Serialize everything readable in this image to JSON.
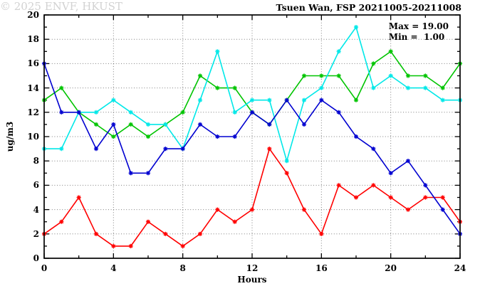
{
  "title": "Tsuen Wan, FSP 20211005-20211008",
  "watermark": "© 2025 ENVF, HKUST",
  "chart_data": {
    "type": "line",
    "title": "Tsuen Wan, FSP 20211005-20211008",
    "xlabel": "Hours",
    "ylabel": "ug/m3",
    "xlim": [
      0,
      24
    ],
    "ylim": [
      0,
      20
    ],
    "grid": true,
    "grid_style": "dotted",
    "xticks_major": [
      0,
      4,
      8,
      12,
      16,
      20,
      24
    ],
    "xticks_minor": [
      2,
      6,
      10,
      14,
      18,
      22
    ],
    "yticks_major": [
      0,
      2,
      4,
      6,
      8,
      10,
      12,
      14,
      16,
      18,
      20
    ],
    "yticks_minor": [
      1,
      3,
      5,
      7,
      9,
      11,
      13,
      15,
      17,
      19
    ],
    "annotations": [
      "Max = 19.00",
      "Min =  1.00"
    ],
    "x": [
      0,
      1,
      2,
      3,
      4,
      5,
      6,
      7,
      8,
      9,
      10,
      11,
      12,
      13,
      14,
      15,
      16,
      17,
      18,
      19,
      20,
      21,
      22,
      23,
      24
    ],
    "series": [
      {
        "name": "series-green",
        "color": "#00c400",
        "values": [
          13,
          14,
          12,
          11,
          10,
          11,
          10,
          11,
          12,
          15,
          14,
          14,
          12,
          11,
          13,
          15,
          15,
          15,
          13,
          16,
          17,
          15,
          15,
          14,
          16
        ]
      },
      {
        "name": "series-cyan",
        "color": "#00e8e8",
        "values": [
          9,
          9,
          12,
          12,
          13,
          12,
          11,
          11,
          9,
          13,
          17,
          12,
          13,
          13,
          8,
          13,
          14,
          17,
          19,
          14,
          15,
          14,
          14,
          13,
          13
        ]
      },
      {
        "name": "series-red",
        "color": "#ff0000",
        "values": [
          2,
          3,
          5,
          2,
          1,
          1,
          3,
          2,
          1,
          2,
          4,
          3,
          4,
          9,
          7,
          4,
          2,
          6,
          5,
          6,
          5,
          4,
          5,
          5,
          3
        ]
      },
      {
        "name": "series-blue",
        "color": "#0000d0",
        "values": [
          16,
          12,
          12,
          9,
          11,
          7,
          7,
          9,
          9,
          11,
          10,
          10,
          12,
          11,
          13,
          11,
          13,
          12,
          10,
          9,
          7,
          8,
          6,
          4,
          2
        ]
      }
    ]
  }
}
